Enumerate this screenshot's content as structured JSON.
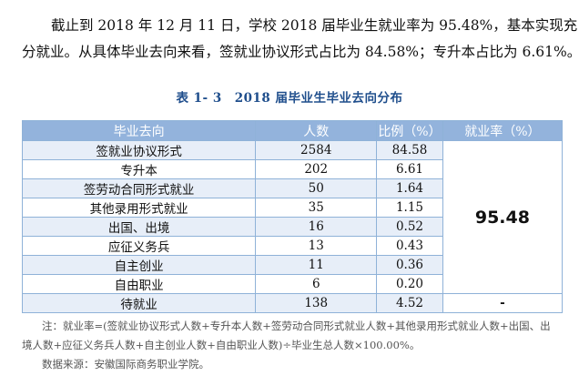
{
  "paragraph": {
    "line1": "截止到 2018 年 12 月 11 日，学校 2018 届毕业生就业率为 95.48%，基本实现充",
    "line2": "分就业。从具体毕业去向来看，签就业协议形式占比为 84.58%；专升本占比为 6.61%。"
  },
  "caption": {
    "number": "表 1- 3",
    "title": "2018 届毕业生毕业去向分布"
  },
  "table": {
    "headers": [
      "毕业去向",
      "人数",
      "比例（%）",
      "就业率（%）"
    ],
    "rows": [
      {
        "name": "签就业协议形式",
        "count": "2584",
        "ratio": "84.58"
      },
      {
        "name": "专升本",
        "count": "202",
        "ratio": "6.61"
      },
      {
        "name": "签劳动合同形式就业",
        "count": "50",
        "ratio": "1.64"
      },
      {
        "name": "其他录用形式就业",
        "count": "35",
        "ratio": "1.15"
      },
      {
        "name": "出国、出境",
        "count": "16",
        "ratio": "0.52"
      },
      {
        "name": "应征义务兵",
        "count": "13",
        "ratio": "0.43"
      },
      {
        "name": "自主创业",
        "count": "11",
        "ratio": "0.36"
      },
      {
        "name": "自由职业",
        "count": "6",
        "ratio": "0.20"
      },
      {
        "name": "待就业",
        "count": "138",
        "ratio": "4.52"
      }
    ],
    "employment_rate": "95.48",
    "unemployed_rate": "-"
  },
  "note": {
    "line1": "注：就业率=(签就业协议形式人数+专升本人数+签劳动合同形式就业人数+其他录用形式就业人数+出国、出",
    "line2": "境人数+应征义务兵人数+自主创业人数+自由职业人数)÷毕业生总人数×100.00%。"
  },
  "source": "数据来源：安徽国际商务职业学院。",
  "colors": {
    "caption": "#1f4e8c",
    "header_bg": "#93b3dc",
    "row_stripe": "#e7eef8",
    "border": "#8fb2d8"
  }
}
